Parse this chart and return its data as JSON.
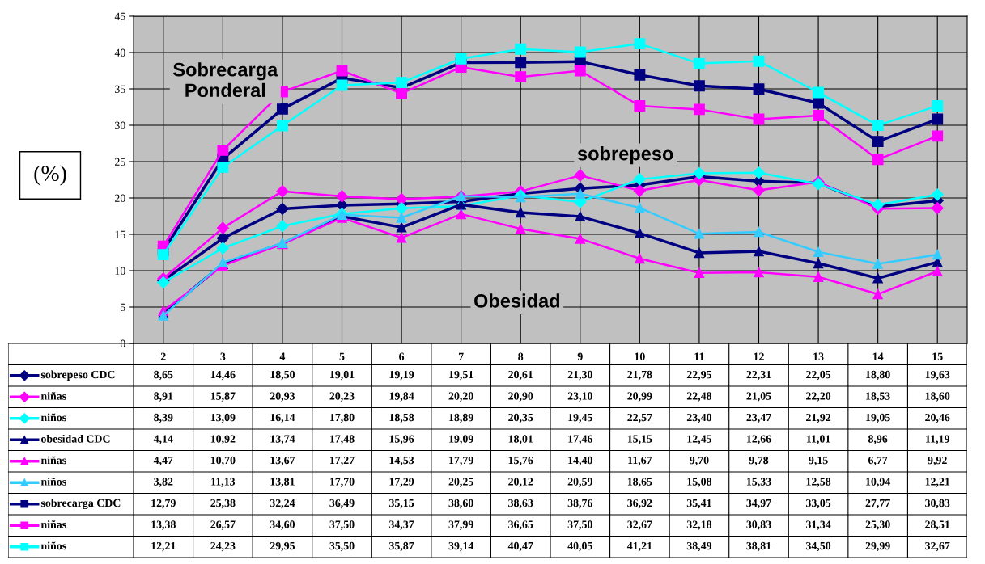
{
  "chart_data": {
    "type": "line",
    "ylabel": "(%)",
    "categories": [
      "2",
      "3",
      "4",
      "5",
      "6",
      "7",
      "8",
      "9",
      "10",
      "11",
      "12",
      "13",
      "14",
      "15"
    ],
    "ylim": [
      0,
      45
    ],
    "yticks": [
      0,
      5,
      10,
      15,
      20,
      25,
      30,
      35,
      40,
      45
    ],
    "grid": true,
    "legend": "bottom",
    "annotations": [
      "Sobrecarga\nPonderal",
      "sobrepeso",
      "Obesidad"
    ],
    "series": [
      {
        "name": "sobrepeso CDC",
        "color": "#000080",
        "marker": "diamond",
        "values": [
          8.65,
          14.46,
          18.5,
          19.01,
          19.19,
          19.51,
          20.61,
          21.3,
          21.78,
          22.95,
          22.31,
          22.05,
          18.8,
          19.63
        ],
        "value_labels": [
          "8,65",
          "14,46",
          "18,50",
          "19,01",
          "19,19",
          "19,51",
          "20,61",
          "21,30",
          "21,78",
          "22,95",
          "22,31",
          "22,05",
          "18,80",
          "19,63"
        ]
      },
      {
        "name": "niñas",
        "color": "#ff00ff",
        "marker": "diamond",
        "values": [
          8.91,
          15.87,
          20.93,
          20.23,
          19.84,
          20.2,
          20.9,
          23.1,
          20.99,
          22.48,
          21.05,
          22.2,
          18.53,
          18.6
        ],
        "value_labels": [
          "8,91",
          "15,87",
          "20,93",
          "20,23",
          "19,84",
          "20,20",
          "20,90",
          "23,10",
          "20,99",
          "22,48",
          "21,05",
          "22,20",
          "18,53",
          "18,60"
        ]
      },
      {
        "name": "niños",
        "color": "#00ffff",
        "marker": "diamond",
        "values": [
          8.39,
          13.09,
          16.14,
          17.8,
          18.58,
          18.89,
          20.35,
          19.45,
          22.57,
          23.4,
          23.47,
          21.92,
          19.05,
          20.46
        ],
        "value_labels": [
          "8,39",
          "13,09",
          "16,14",
          "17,80",
          "18,58",
          "18,89",
          "20,35",
          "19,45",
          "22,57",
          "23,40",
          "23,47",
          "21,92",
          "19,05",
          "20,46"
        ]
      },
      {
        "name": "obesidad CDC",
        "color": "#000080",
        "marker": "triangle",
        "values": [
          4.14,
          10.92,
          13.74,
          17.48,
          15.96,
          19.09,
          18.01,
          17.46,
          15.15,
          12.45,
          12.66,
          11.01,
          8.96,
          11.19
        ],
        "value_labels": [
          "4,14",
          "10,92",
          "13,74",
          "17,48",
          "15,96",
          "19,09",
          "18,01",
          "17,46",
          "15,15",
          "12,45",
          "12,66",
          "11,01",
          "8,96",
          "11,19"
        ]
      },
      {
        "name": "niñas",
        "color": "#ff00ff",
        "marker": "triangle",
        "values": [
          4.47,
          10.7,
          13.67,
          17.27,
          14.53,
          17.79,
          15.76,
          14.4,
          11.67,
          9.7,
          9.78,
          9.15,
          6.77,
          9.92
        ],
        "value_labels": [
          "4,47",
          "10,70",
          "13,67",
          "17,27",
          "14,53",
          "17,79",
          "15,76",
          "14,40",
          "11,67",
          "9,70",
          "9,78",
          "9,15",
          "6,77",
          "9,92"
        ]
      },
      {
        "name": "niños",
        "color": "#33ccff",
        "marker": "triangle",
        "values": [
          3.82,
          11.13,
          13.81,
          17.7,
          17.29,
          20.25,
          20.12,
          20.59,
          18.65,
          15.08,
          15.33,
          12.58,
          10.94,
          12.21
        ],
        "value_labels": [
          "3,82",
          "11,13",
          "13,81",
          "17,70",
          "17,29",
          "20,25",
          "20,12",
          "20,59",
          "18,65",
          "15,08",
          "15,33",
          "12,58",
          "10,94",
          "12,21"
        ]
      },
      {
        "name": "sobrecarga CDC",
        "color": "#000080",
        "marker": "square",
        "values": [
          12.79,
          25.38,
          32.24,
          36.49,
          35.15,
          38.6,
          38.63,
          38.76,
          36.92,
          35.41,
          34.97,
          33.05,
          27.77,
          30.83
        ],
        "value_labels": [
          "12,79",
          "25,38",
          "32,24",
          "36,49",
          "35,15",
          "38,60",
          "38,63",
          "38,76",
          "36,92",
          "35,41",
          "34,97",
          "33,05",
          "27,77",
          "30,83"
        ]
      },
      {
        "name": "niñas",
        "color": "#ff00ff",
        "marker": "square",
        "values": [
          13.38,
          26.57,
          34.6,
          37.5,
          34.37,
          37.99,
          36.65,
          37.5,
          32.67,
          32.18,
          30.83,
          31.34,
          25.3,
          28.51
        ],
        "value_labels": [
          "13,38",
          "26,57",
          "34,60",
          "37,50",
          "34,37",
          "37,99",
          "36,65",
          "37,50",
          "32,67",
          "32,18",
          "30,83",
          "31,34",
          "25,30",
          "28,51"
        ]
      },
      {
        "name": "niños",
        "color": "#00ffff",
        "marker": "square",
        "values": [
          12.21,
          24.23,
          29.95,
          35.5,
          35.87,
          39.14,
          40.47,
          40.05,
          41.21,
          38.49,
          38.81,
          34.5,
          29.99,
          32.67
        ],
        "value_labels": [
          "12,21",
          "24,23",
          "29,95",
          "35,50",
          "35,87",
          "39,14",
          "40,47",
          "40,05",
          "41,21",
          "38,49",
          "38,81",
          "34,50",
          "29,99",
          "32,67"
        ]
      }
    ]
  }
}
